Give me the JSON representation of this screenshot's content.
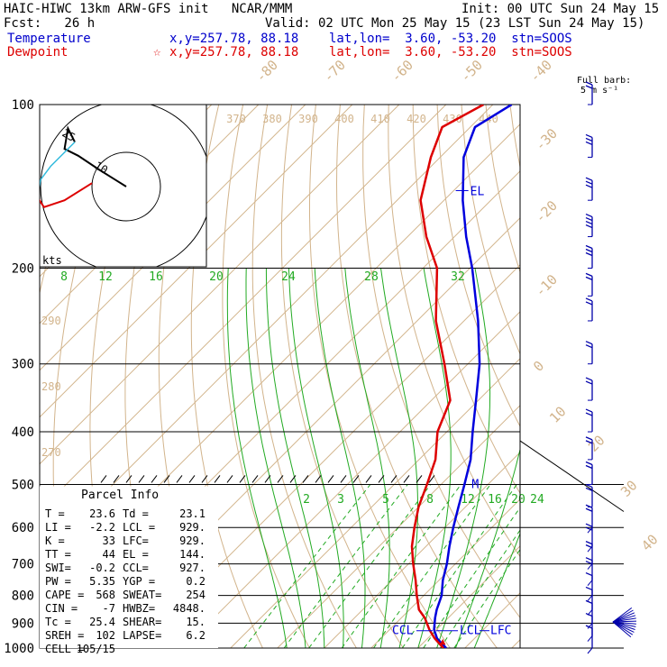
{
  "header": {
    "title": "HAIC-HIWC 13km ARW-GFS init   NCAR/MMM",
    "init": "Init: 00 UTC Sun 24 May 15",
    "fcst": "Fcst:   26 h",
    "valid": "Valid: 02 UTC Mon 25 May 15 (23 LST Sun 24 May 15)",
    "temp_label": "Temperature",
    "temp_info": "x,y=257.78, 88.18    lat,lon=  3.60, -53.20  stn=SOOS",
    "dew_label": "Dewpoint",
    "dew_info": "x,y=257.78, 88.18    lat,lon=  3.60, -53.20  stn=SOOS",
    "dew_star": "☆",
    "barb_note_1": "Full barb:",
    "barb_note_2": "5 m s⁻¹"
  },
  "hodograph": {
    "ring_labels": [
      "25",
      "10"
    ],
    "units": "kts"
  },
  "parcel": {
    "title": "Parcel Info",
    "rows": [
      [
        "T  =",
        "23.6",
        "Td =",
        "23.1"
      ],
      [
        "LI =",
        "-2.2",
        "LCL =",
        "929."
      ],
      [
        "K  =",
        "33",
        "LFC=",
        "929."
      ],
      [
        "TT =",
        "44",
        "EL =",
        "144."
      ],
      [
        "SWI=",
        "-0.2",
        "CCL=",
        "927."
      ],
      [
        "PW =",
        "5.35",
        "YGP =",
        "0.2"
      ],
      [
        "CAPE =",
        "568",
        "SWEAT=",
        "254"
      ],
      [
        "CIN =",
        "-7",
        "HWBZ=",
        "4848."
      ],
      [
        "Tc =",
        "25.4",
        "SHEAR=",
        "15."
      ],
      [
        "SREH =",
        "102",
        "LAPSE=",
        "6.2"
      ],
      [
        "CELL =",
        "105/15",
        "",
        ""
      ]
    ]
  },
  "chart_data": {
    "type": "line",
    "chart_kind": "skew-T log-P sounding",
    "y_axis": "pressure (hPa)",
    "pressure_levels": [
      100,
      200,
      300,
      400,
      500,
      600,
      700,
      800,
      900,
      1000
    ],
    "skew_labels": [
      "-80",
      "-70",
      "-60",
      "-50",
      "-40",
      "-30",
      "-20",
      "-10",
      "0",
      "10",
      "20",
      "30",
      "40"
    ],
    "theta_labels": [
      "370",
      "380",
      "390",
      "400",
      "410",
      "420",
      "430",
      "440"
    ],
    "theta_side_labels": [
      "290",
      "280",
      "270"
    ],
    "mixing_ratio_top_labels": [
      "8",
      "12",
      "16",
      "20",
      "24",
      "28",
      "32"
    ],
    "mixing_ratio_bottom_labels": [
      "2",
      "3",
      "5",
      "8",
      "12",
      "16",
      "20",
      "24"
    ],
    "annotations": [
      {
        "text": "EL",
        "p": 144
      },
      {
        "text": "M",
        "p": 500
      },
      {
        "text": "CCL",
        "p": 927
      },
      {
        "text": "LCL",
        "p": 929
      },
      {
        "text": "LFC",
        "p": 929
      }
    ],
    "series": [
      {
        "name": "Temperature",
        "color": "#0000dd",
        "points": [
          {
            "p": 1000,
            "t": 26.0
          },
          {
            "p": 960,
            "t": 22.0
          },
          {
            "p": 925,
            "t": 19.5
          },
          {
            "p": 880,
            "t": 17.2
          },
          {
            "p": 850,
            "t": 15.8
          },
          {
            "p": 800,
            "t": 13.8
          },
          {
            "p": 750,
            "t": 10.8
          },
          {
            "p": 700,
            "t": 8.2
          },
          {
            "p": 650,
            "t": 5.0
          },
          {
            "p": 600,
            "t": 1.8
          },
          {
            "p": 550,
            "t": -1.5
          },
          {
            "p": 500,
            "t": -5.0
          },
          {
            "p": 450,
            "t": -9.0
          },
          {
            "p": 400,
            "t": -14.5
          },
          {
            "p": 350,
            "t": -20.5
          },
          {
            "p": 300,
            "t": -27.5
          },
          {
            "p": 250,
            "t": -37.0
          },
          {
            "p": 200,
            "t": -49.5
          },
          {
            "p": 175,
            "t": -57.5
          },
          {
            "p": 150,
            "t": -66.0
          },
          {
            "p": 125,
            "t": -75.0
          },
          {
            "p": 110,
            "t": -79.0
          },
          {
            "p": 100,
            "t": -76.0
          }
        ]
      },
      {
        "name": "Dewpoint",
        "color": "#dd0000",
        "points": [
          {
            "p": 1000,
            "t": 25.4
          },
          {
            "p": 960,
            "t": 21.5
          },
          {
            "p": 925,
            "t": 18.5
          },
          {
            "p": 880,
            "t": 15.0
          },
          {
            "p": 850,
            "t": 12.0
          },
          {
            "p": 800,
            "t": 8.5
          },
          {
            "p": 750,
            "t": 5.0
          },
          {
            "p": 700,
            "t": 1.0
          },
          {
            "p": 650,
            "t": -3.0
          },
          {
            "p": 600,
            "t": -6.5
          },
          {
            "p": 550,
            "t": -10.0
          },
          {
            "p": 500,
            "t": -13.0
          },
          {
            "p": 450,
            "t": -16.5
          },
          {
            "p": 400,
            "t": -22.0
          },
          {
            "p": 350,
            "t": -26.0
          },
          {
            "p": 300,
            "t": -35.0
          },
          {
            "p": 250,
            "t": -46.0
          },
          {
            "p": 200,
            "t": -57.0
          },
          {
            "p": 175,
            "t": -66.0
          },
          {
            "p": 150,
            "t": -75.0
          },
          {
            "p": 125,
            "t": -82.0
          },
          {
            "p": 110,
            "t": -86.0
          },
          {
            "p": 100,
            "t": -82.0
          }
        ]
      }
    ],
    "hodograph_trace": [
      {
        "u": 0,
        "v": 0
      },
      {
        "u": -8,
        "v": 5
      },
      {
        "u": -14,
        "v": 9
      },
      {
        "u": -18,
        "v": 11
      },
      {
        "u": -17,
        "v": 17
      },
      {
        "u": -15,
        "v": 13
      },
      {
        "u": -22,
        "v": 6
      },
      {
        "u": -25,
        "v": 2
      },
      {
        "u": -26,
        "v": -3
      },
      {
        "u": -24,
        "v": -6
      },
      {
        "u": -18,
        "v": -4
      },
      {
        "u": -10,
        "v": 1
      }
    ],
    "wind_barbs_m_s": [
      {
        "p": 100,
        "spd": 12,
        "dir": 90
      },
      {
        "p": 125,
        "spd": 15,
        "dir": 90
      },
      {
        "p": 150,
        "spd": 16,
        "dir": 95
      },
      {
        "p": 175,
        "spd": 18,
        "dir": 100
      },
      {
        "p": 200,
        "spd": 14,
        "dir": 100
      },
      {
        "p": 225,
        "spd": 11,
        "dir": 95
      },
      {
        "p": 250,
        "spd": 9,
        "dir": 90
      },
      {
        "p": 300,
        "spd": 8,
        "dir": 85
      },
      {
        "p": 350,
        "spd": 10,
        "dir": 85
      },
      {
        "p": 400,
        "spd": 11,
        "dir": 80
      },
      {
        "p": 450,
        "spd": 12,
        "dir": 80
      },
      {
        "p": 500,
        "spd": 12,
        "dir": 85
      },
      {
        "p": 550,
        "spd": 11,
        "dir": 90
      },
      {
        "p": 600,
        "spd": 10,
        "dir": 90
      },
      {
        "p": 650,
        "spd": 9,
        "dir": 95
      },
      {
        "p": 700,
        "spd": 8,
        "dir": 95
      },
      {
        "p": 750,
        "spd": 8,
        "dir": 100
      },
      {
        "p": 800,
        "spd": 7,
        "dir": 105
      },
      {
        "p": 850,
        "spd": 6,
        "dir": 110
      },
      {
        "p": 900,
        "spd": 5,
        "dir": 120
      },
      {
        "p": 950,
        "spd": 4,
        "dir": 130
      },
      {
        "p": 1000,
        "spd": 3,
        "dir": 140
      }
    ]
  }
}
